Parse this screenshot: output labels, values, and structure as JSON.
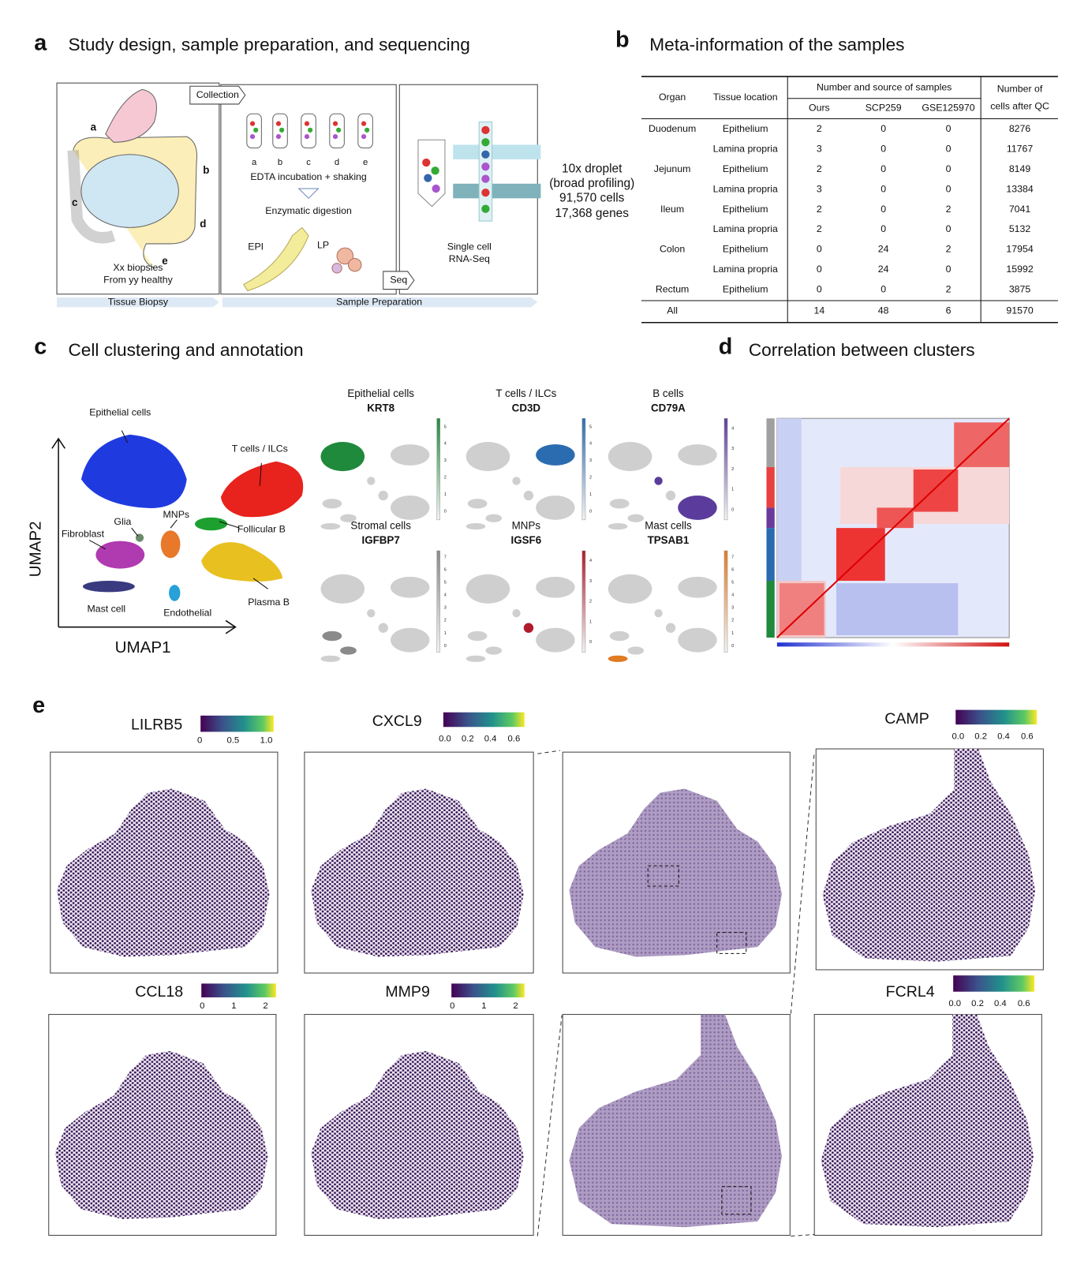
{
  "panel_a": {
    "letter": "a",
    "title": "Study design, sample preparation, and sequencing",
    "collection": "Collection",
    "tubes": [
      "a",
      "b",
      "c",
      "d",
      "e"
    ],
    "step1": "EDTA incubation + shaking",
    "step2": "Enzymatic digestion",
    "epi": "EPI",
    "lp": "LP",
    "seq": "Seq",
    "output": [
      "Single cell",
      "RNA-Seq"
    ],
    "site_labels": [
      "a",
      "b",
      "c",
      "d",
      "e"
    ],
    "biopsies": [
      "Xx biopsies",
      "From yy healthy"
    ],
    "stages": [
      "Tissue Biopsy",
      "Sample Preparation"
    ],
    "summary": [
      "10x droplet",
      "(broad profiling)",
      "91,570 cells",
      "17,368 genes"
    ]
  },
  "panel_b": {
    "letter": "b",
    "title": "Meta-information of the samples",
    "header": {
      "organ": "Organ",
      "location": "Tissue location",
      "source": "Number and source of samples",
      "sources": [
        "Ours",
        "SCP259",
        "GSE125970"
      ],
      "cells": [
        "Number of",
        "cells after QC"
      ]
    },
    "groups": [
      {
        "organ": "Duodenum",
        "rows": [
          [
            "Epithelium",
            2,
            0,
            0,
            8276
          ],
          [
            "Lamina propria",
            3,
            0,
            0,
            11767
          ]
        ]
      },
      {
        "organ": "Jejunum",
        "rows": [
          [
            "Epithelium",
            2,
            0,
            0,
            8149
          ],
          [
            "Lamina propria",
            3,
            0,
            0,
            13384
          ]
        ]
      },
      {
        "organ": "Ileum",
        "rows": [
          [
            "Epithelium",
            2,
            0,
            2,
            7041
          ],
          [
            "Lamina propria",
            2,
            0,
            0,
            5132
          ]
        ]
      },
      {
        "organ": "Colon",
        "rows": [
          [
            "Epithelium",
            0,
            24,
            2,
            17954
          ],
          [
            "Lamina propria",
            0,
            24,
            0,
            15992
          ]
        ]
      },
      {
        "organ": "Rectum",
        "rows": [
          [
            "Epithelium",
            0,
            0,
            2,
            3875
          ]
        ]
      }
    ],
    "total": [
      "All",
      14,
      48,
      6,
      91570
    ]
  },
  "panel_c": {
    "letter": "c",
    "title": "Cell clustering and annotation",
    "umap": {
      "labels": [
        "Epithelial cells",
        "T cells / ILCs",
        "Glia",
        "MNPs",
        "Fibroblast",
        "Follicular B",
        "Mast cell",
        "Endothelial",
        "Plasma B"
      ],
      "x_axis": "UMAP1",
      "y_axis": "UMAP2"
    },
    "features": [
      {
        "cell_type": "Epithelial cells",
        "gene": "KRT8",
        "color": "#1f8a3c",
        "ticks": [
          "0",
          "1",
          "2",
          "3",
          "4",
          "5"
        ]
      },
      {
        "cell_type": "T cells / ILCs",
        "gene": "CD3D",
        "color": "#2b6cb0",
        "ticks": [
          "0",
          "1",
          "2",
          "3",
          "4",
          "5"
        ]
      },
      {
        "cell_type": "B cells",
        "gene": "CD79A",
        "color": "#5b3c9c",
        "ticks": [
          "0",
          "1",
          "2",
          "3",
          "4"
        ]
      },
      {
        "cell_type": "Stromal cells",
        "gene": "IGFBP7",
        "color": "#8a8a8a",
        "ticks": [
          "0",
          "1",
          "2",
          "3",
          "4",
          "5",
          "6",
          "7"
        ]
      },
      {
        "cell_type": "MNPs",
        "gene": "IGSF6",
        "color": "#b01a2c",
        "ticks": [
          "0",
          "1",
          "2",
          "3",
          "4"
        ]
      },
      {
        "cell_type": "Mast cells",
        "gene": "TPSAB1",
        "color": "#e07b22",
        "ticks": [
          "0",
          "1",
          "2",
          "3",
          "4",
          "5",
          "6",
          "7"
        ]
      }
    ]
  },
  "panel_d": {
    "letter": "d",
    "title": "Correlation between clusters"
  },
  "panel_e": {
    "letter": "e",
    "genes": [
      {
        "name": "LILRB5",
        "ticks": [
          "0",
          "0.5",
          "1.0"
        ]
      },
      {
        "name": "CXCL9",
        "ticks": [
          "0.0",
          "0.2",
          "0.4",
          "0.6"
        ]
      },
      {
        "name": "CAMP",
        "ticks": [
          "0.0",
          "0.2",
          "0.4",
          "0.6"
        ]
      },
      {
        "name": "CCL18",
        "ticks": [
          "0",
          "1",
          "2"
        ]
      },
      {
        "name": "MMP9",
        "ticks": [
          "0",
          "1",
          "2"
        ]
      },
      {
        "name": "FCRL4",
        "ticks": [
          "0.0",
          "0.2",
          "0.4",
          "0.6"
        ]
      }
    ]
  }
}
